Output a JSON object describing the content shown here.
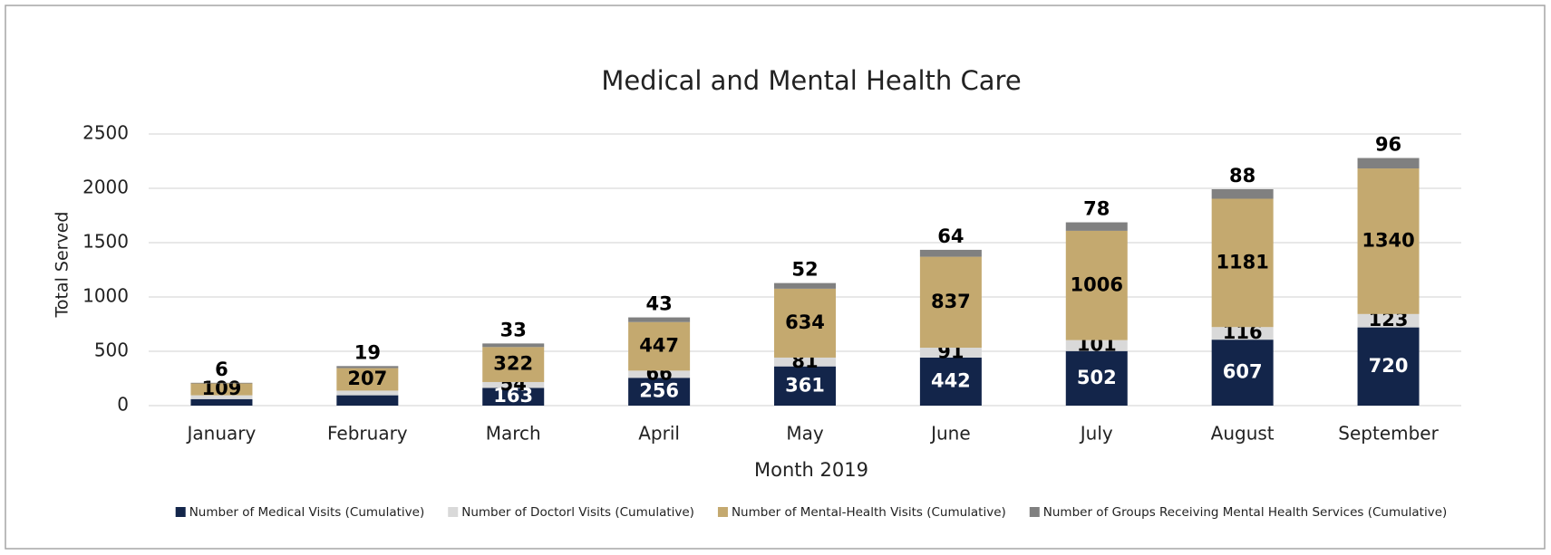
{
  "chart_data": {
    "type": "stacked_bar",
    "title": "Medical and Mental Health Care",
    "x_label": "Month 2019",
    "y_label": "Total  Served",
    "categories": [
      "January",
      "February",
      "March",
      "April",
      "May",
      "June",
      "July",
      "August",
      "September"
    ],
    "series": [
      {
        "name": "Number of Medical Visits (Cumulative)",
        "color": "#13254a",
        "label_color": "#ffffff",
        "values": [
          60,
          95,
          163,
          256,
          361,
          442,
          502,
          607,
          720
        ],
        "value_labels": [
          null,
          null,
          "163",
          "256",
          "361",
          "442",
          "502",
          "607",
          "720"
        ]
      },
      {
        "name": "Number of Doctorl Visits (Cumulative)",
        "color": "#d9d9d9",
        "label_color": "#000000",
        "values": [
          35,
          43,
          54,
          66,
          81,
          91,
          101,
          116,
          123
        ],
        "value_labels": [
          null,
          null,
          "54",
          "66",
          "81",
          "91",
          "101",
          "116",
          "123"
        ]
      },
      {
        "name": "Number of Mental-Health Visits (Cumulative)",
        "color": "#c4a96f",
        "label_color": "#000000",
        "values": [
          109,
          207,
          322,
          447,
          634,
          837,
          1006,
          1181,
          1340
        ],
        "value_labels": [
          "109",
          "207",
          "322",
          "447",
          "634",
          "837",
          "1006",
          "1181",
          "1340"
        ]
      },
      {
        "name": "Number of Groups Receiving Mental Health Services (Cumulative)",
        "color": "#808080",
        "label_color": "#000000",
        "values": [
          6,
          19,
          33,
          43,
          52,
          64,
          78,
          88,
          96
        ],
        "value_labels": [
          "6",
          "19",
          "33",
          "43",
          "52",
          "64",
          "78",
          "88",
          "96"
        ]
      }
    ],
    "ylim": [
      0,
      2500
    ],
    "yticks": [
      0,
      500,
      1000,
      1500,
      2000,
      2500
    ],
    "grid": true,
    "legend": "bottom"
  }
}
